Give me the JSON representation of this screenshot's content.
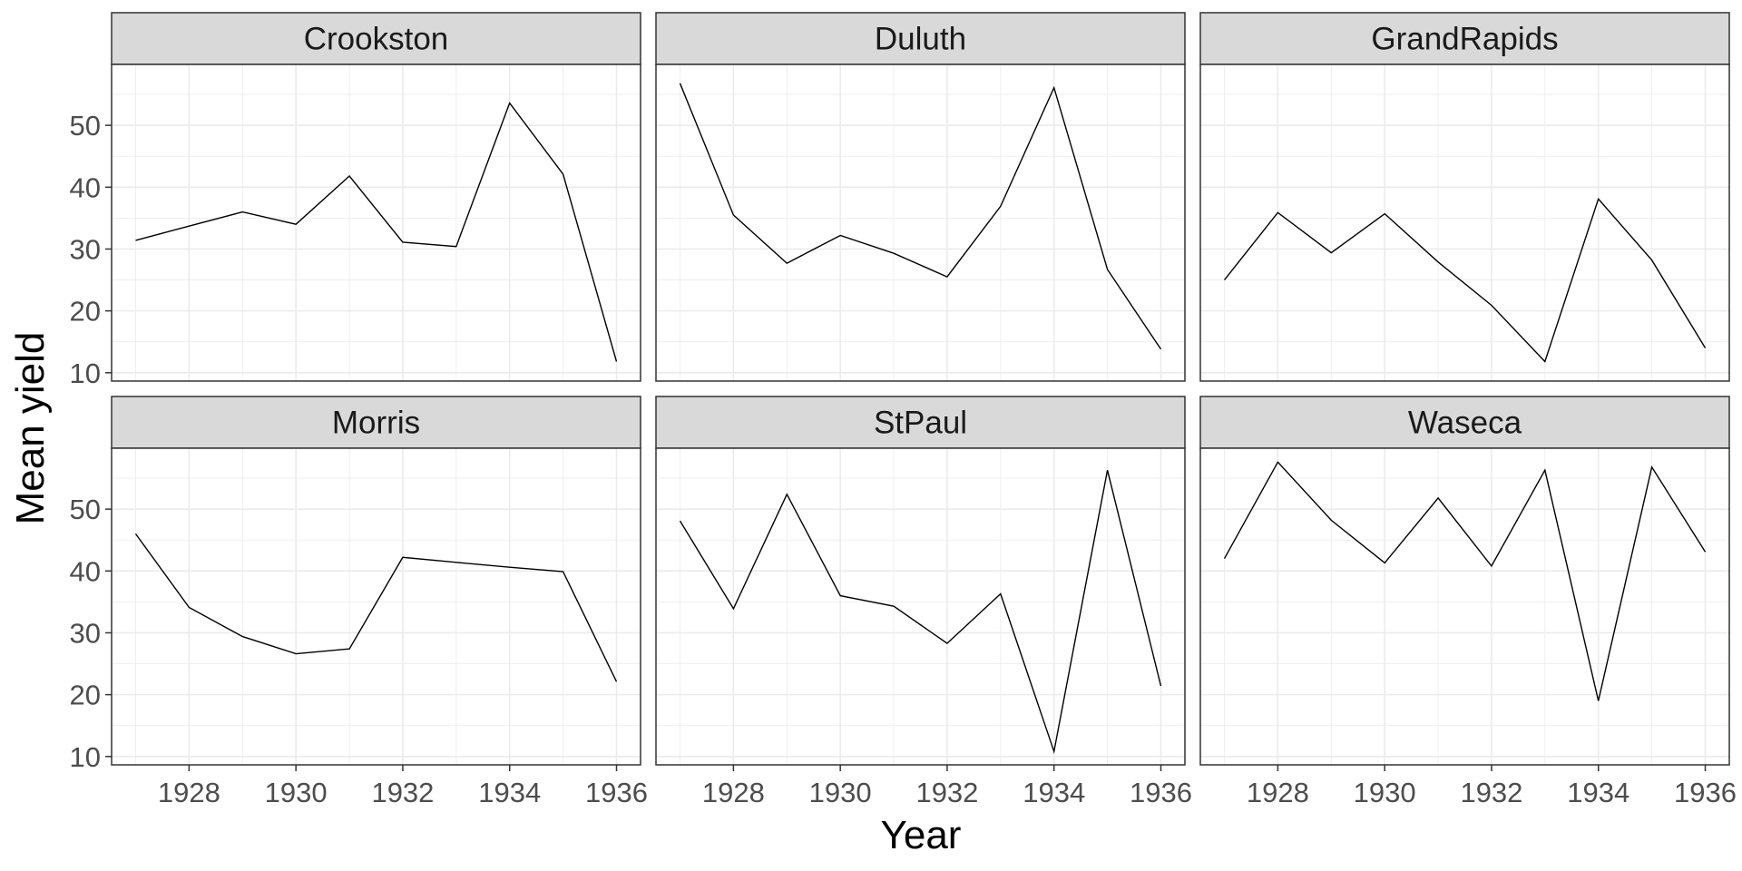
{
  "chart_data": {
    "type": "line",
    "facet_layout": "2x3",
    "xlabel": "Year",
    "ylabel": "Mean yield",
    "xlim": [
      1926.55,
      1936.45
    ],
    "ylim": [
      8.65,
      59.85
    ],
    "x_ticks": [
      1928,
      1930,
      1932,
      1934,
      1936
    ],
    "y_ticks": [
      10,
      20,
      30,
      40,
      50
    ],
    "grid": true,
    "theme": "bw",
    "colors": {
      "line": "#000000",
      "strip": "#d9d9d9",
      "grid": "#ebebeb",
      "border": "#333333"
    },
    "x": [
      1927,
      1928,
      1929,
      1930,
      1931,
      1932,
      1933,
      1934,
      1935,
      1936
    ],
    "facets": [
      {
        "name": "Crookston",
        "values": [
          31.4,
          33.7,
          36.0,
          34.0,
          41.8,
          31.1,
          30.4,
          53.6,
          42.1,
          11.8
        ]
      },
      {
        "name": "Duluth",
        "values": [
          56.8,
          35.5,
          27.7,
          32.2,
          29.3,
          25.5,
          36.9,
          56.1,
          26.7,
          13.8
        ]
      },
      {
        "name": "GrandRapids",
        "values": [
          25.0,
          35.9,
          29.4,
          35.7,
          27.9,
          20.9,
          11.8,
          38.1,
          28.2,
          14.0
        ]
      },
      {
        "name": "Morris",
        "values": [
          46.0,
          34.1,
          29.4,
          26.6,
          27.4,
          42.2,
          41.4,
          40.6,
          39.9,
          22.1
        ]
      },
      {
        "name": "StPaul",
        "values": [
          48.1,
          33.9,
          52.4,
          36.0,
          34.3,
          28.3,
          36.3,
          10.8,
          56.3,
          21.4
        ]
      },
      {
        "name": "Waseca",
        "values": [
          42.0,
          57.6,
          48.2,
          41.3,
          51.8,
          40.8,
          56.3,
          19.0,
          56.8,
          43.1
        ]
      }
    ]
  }
}
